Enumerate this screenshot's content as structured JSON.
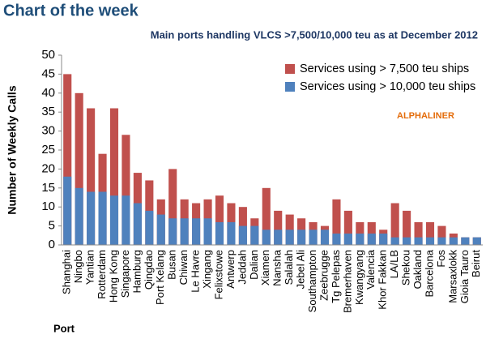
{
  "chart_data": {
    "type": "bar",
    "overlap": true,
    "title": "Chart of the week",
    "subtitle": "Main ports handling VLCS >7,500/10,000 teu as at December 2012",
    "annotation": "ALPHALINER",
    "ylabel": "Number of Weekly Calls",
    "xlabel": "Port",
    "categories": [
      "Shanghai",
      "Ningbo",
      "Yantian",
      "Rotterdam",
      "Hong Kong",
      "Singapore",
      "Hamburg",
      "Qingdao",
      "Port Kelang",
      "Busan",
      "Chiwan",
      "Le Havre",
      "Xingang",
      "Felixstowe",
      "Antwerp",
      "Jeddah",
      "Dalian",
      "Xiamen",
      "Nansha",
      "Salalah",
      "Jebel Ali",
      "Southampton",
      "Zeebrugge",
      "Tg Pelepas",
      "Bremerhaven",
      "Kwangyang",
      "Valencia",
      "Khor Fakkan",
      "LA/LB",
      "Shekou",
      "Oakland",
      "Barcelona",
      "Fos",
      "Marsaxlokk",
      "Gioia Tauro",
      "Beirut"
    ],
    "series": [
      {
        "name": "Services using > 7,500 teu ships",
        "color": "#c0504d",
        "values": [
          45,
          40,
          36,
          24,
          36,
          29,
          19,
          17,
          12,
          20,
          12,
          11,
          12,
          13,
          11,
          10,
          7,
          15,
          9,
          8,
          7,
          6,
          5,
          12,
          9,
          6,
          6,
          4,
          11,
          9,
          6,
          6,
          5,
          3,
          2,
          2
        ]
      },
      {
        "name": "Services using > 10,000 teu ships",
        "color": "#4f81bd",
        "values": [
          18,
          15,
          14,
          14,
          13,
          13,
          11,
          9,
          8,
          7,
          7,
          7,
          7,
          6,
          6,
          5,
          5,
          4,
          4,
          4,
          4,
          4,
          4,
          3,
          3,
          3,
          3,
          3,
          2,
          2,
          2,
          2,
          2,
          2,
          2,
          2
        ]
      }
    ],
    "ylim": [
      0,
      50
    ],
    "yticks": [
      0,
      5,
      10,
      15,
      20,
      25,
      30,
      35,
      40,
      45,
      50
    ],
    "grid": false,
    "legend": "top-right"
  }
}
